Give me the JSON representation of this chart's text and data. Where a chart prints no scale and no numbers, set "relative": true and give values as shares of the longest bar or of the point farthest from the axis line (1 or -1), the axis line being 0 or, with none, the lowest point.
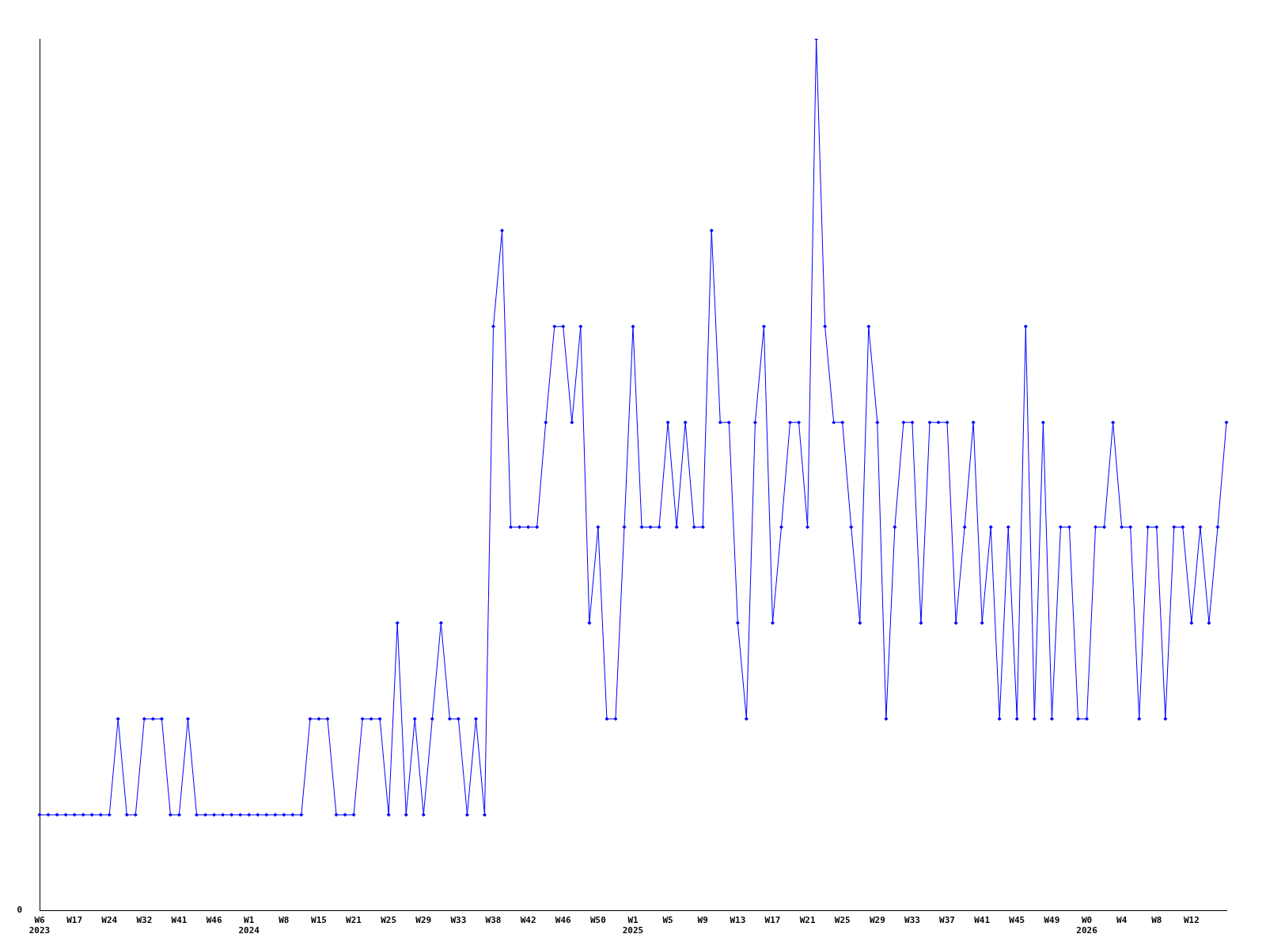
{
  "chart_data": {
    "type": "line",
    "relative": true,
    "marker": "diamond",
    "legend": false,
    "grid": false,
    "annotations": [
      "0"
    ],
    "categories": [
      "W6 2023",
      null,
      null,
      null,
      "W17",
      null,
      null,
      null,
      "W24",
      null,
      null,
      null,
      "W32",
      null,
      null,
      null,
      "W41",
      null,
      null,
      null,
      "W46",
      null,
      null,
      null,
      "W1 2024",
      null,
      null,
      null,
      "W8",
      null,
      null,
      null,
      "W15",
      null,
      null,
      null,
      "W21",
      null,
      null,
      null,
      "W25",
      null,
      null,
      null,
      "W29",
      null,
      null,
      null,
      "W33",
      null,
      null,
      null,
      "W38",
      null,
      null,
      null,
      "W42",
      null,
      null,
      null,
      "W46",
      null,
      null,
      null,
      "W50",
      null,
      null,
      null,
      "W1 2025",
      null,
      null,
      null,
      "W5",
      null,
      null,
      null,
      "W9",
      null,
      null,
      null,
      "W13",
      null,
      null,
      null,
      "W17",
      null,
      null,
      null,
      "W21",
      null,
      null,
      null,
      "W25",
      null,
      null,
      null,
      "W29",
      null,
      null,
      null,
      "W33",
      null,
      null,
      null,
      "W37",
      null,
      null,
      null,
      "W41",
      null,
      null,
      null,
      "W45",
      null,
      null,
      null,
      "W49",
      null,
      null,
      null,
      "W0 2026",
      null,
      null,
      null,
      "W4",
      null,
      null,
      null,
      "W8",
      null,
      null,
      null,
      "W12",
      null,
      null,
      null,
      null
    ],
    "series": [
      {
        "color": "#0000ff",
        "values": [
          0.11,
          0.11,
          0.11,
          0.11,
          0.11,
          0.11,
          0.11,
          0.11,
          0.11,
          0.22,
          0.11,
          0.11,
          0.22,
          0.22,
          0.22,
          0.11,
          0.11,
          0.22,
          0.11,
          0.11,
          0.11,
          0.11,
          0.11,
          0.11,
          0.11,
          0.11,
          0.11,
          0.11,
          0.11,
          0.11,
          0.11,
          0.22,
          0.22,
          0.22,
          0.11,
          0.11,
          0.11,
          0.22,
          0.22,
          0.22,
          0.11,
          0.33,
          0.11,
          0.22,
          0.11,
          0.22,
          0.33,
          0.22,
          0.22,
          0.11,
          0.22,
          0.11,
          0.67,
          0.78,
          0.44,
          0.44,
          0.44,
          0.44,
          0.56,
          0.67,
          0.67,
          0.56,
          0.67,
          0.33,
          0.44,
          0.22,
          0.22,
          0.44,
          0.67,
          0.44,
          0.44,
          0.44,
          0.56,
          0.44,
          0.56,
          0.44,
          0.44,
          0.78,
          0.56,
          0.56,
          0.33,
          0.22,
          0.56,
          0.67,
          0.33,
          0.44,
          0.56,
          0.56,
          0.44,
          1,
          0.67,
          0.56,
          0.56,
          0.44,
          0.33,
          0.67,
          0.56,
          0.22,
          0.44,
          0.56,
          0.56,
          0.33,
          0.56,
          0.56,
          0.56,
          0.33,
          0.44,
          0.56,
          0.33,
          0.44,
          0.22,
          0.44,
          0.22,
          0.67,
          0.22,
          0.56,
          0.22,
          0.44,
          0.44,
          0.22,
          0.22,
          0.44,
          0.44,
          0.56,
          0.44,
          0.44,
          0.22,
          0.44,
          0.44,
          0.22,
          0.44,
          0.44,
          0.33,
          0.44,
          0.33,
          0.44,
          0.56
        ]
      }
    ]
  }
}
